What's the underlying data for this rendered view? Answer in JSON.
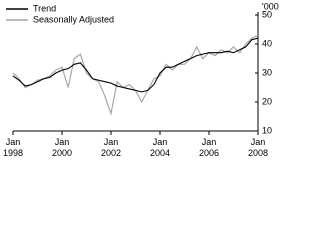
{
  "chart_data": {
    "type": "line",
    "y_unit_label": "'000",
    "x": [
      1998,
      1998.25,
      1998.5,
      1998.75,
      1999,
      1999.25,
      1999.5,
      1999.75,
      2000,
      2000.25,
      2000.5,
      2000.75,
      2001,
      2001.25,
      2001.5,
      2001.75,
      2002,
      2002.25,
      2002.5,
      2002.75,
      2003,
      2003.25,
      2003.5,
      2003.75,
      2004,
      2004.25,
      2004.5,
      2004.75,
      2005,
      2005.25,
      2005.5,
      2005.75,
      2006,
      2006.25,
      2006.5,
      2006.75,
      2007,
      2007.25,
      2007.5,
      2007.75,
      2008
    ],
    "series": [
      {
        "name": "Trend",
        "color": "#000000",
        "values": [
          29,
          27.5,
          25.5,
          26,
          27,
          28,
          28.5,
          30,
          31,
          31.5,
          33,
          33.5,
          31,
          28,
          27.5,
          27,
          26.5,
          25.5,
          25,
          24.5,
          24,
          23.5,
          24,
          26,
          30,
          32,
          32,
          33,
          34,
          35,
          36,
          36.5,
          37,
          37,
          37,
          37.5,
          37,
          38,
          39,
          41.5,
          42
        ]
      },
      {
        "name": "Seasonally Adjusted",
        "color": "#a6a6a6",
        "values": [
          30,
          28,
          25,
          26,
          27.5,
          28,
          29,
          31,
          32,
          25,
          35,
          36.5,
          30,
          28,
          27,
          22,
          16,
          27,
          25,
          26,
          24,
          20,
          24,
          28,
          29,
          33,
          31,
          33,
          33,
          35,
          39,
          35,
          37,
          36,
          38,
          37,
          39,
          37,
          40,
          42,
          43
        ]
      }
    ],
    "xlim": [
      1998,
      2008
    ],
    "xticks": [
      {
        "value": 1998,
        "label": "Jan 1998"
      },
      {
        "value": 2000,
        "label": "Jan 2000"
      },
      {
        "value": 2002,
        "label": "Jan 2002"
      },
      {
        "value": 2004,
        "label": "Jan 2004"
      },
      {
        "value": 2006,
        "label": "Jan 2006"
      },
      {
        "value": 2008,
        "label": "Jan 2008"
      }
    ],
    "ylim": [
      10,
      50
    ],
    "yticks": [
      10,
      20,
      30,
      40,
      50
    ],
    "grid": false,
    "legend": "top-left"
  }
}
